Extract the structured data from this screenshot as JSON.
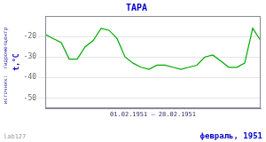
{
  "chart_data": {
    "type": "line",
    "title": "ТАРА",
    "ylabel": "t,°C",
    "annotations": [
      "01.02.1951 – 28.02.1951",
      "февраль, 1951",
      "источник:  гидрометцентр",
      "lab127"
    ],
    "x": [
      1,
      2,
      3,
      4,
      5,
      6,
      7,
      8,
      9,
      10,
      11,
      12,
      13,
      14,
      15,
      16,
      17,
      18,
      19,
      20,
      21,
      22,
      23,
      24,
      25,
      26,
      27,
      28
    ],
    "values": [
      -19,
      -21,
      -23,
      -31,
      -31,
      -25,
      -22,
      -16,
      -17,
      -21,
      -30,
      -33,
      -35,
      -36,
      -34,
      -34,
      -35,
      -36,
      -35,
      -34,
      -30,
      -29,
      -32,
      -35,
      -35,
      -33,
      -16,
      -22
    ],
    "color": "#00aa00",
    "xlim": [
      1,
      28
    ],
    "ylim": [
      -55,
      -10
    ],
    "yticks": [
      -50,
      -40,
      -30,
      -20
    ],
    "grid": true,
    "tick_labels": "y"
  }
}
